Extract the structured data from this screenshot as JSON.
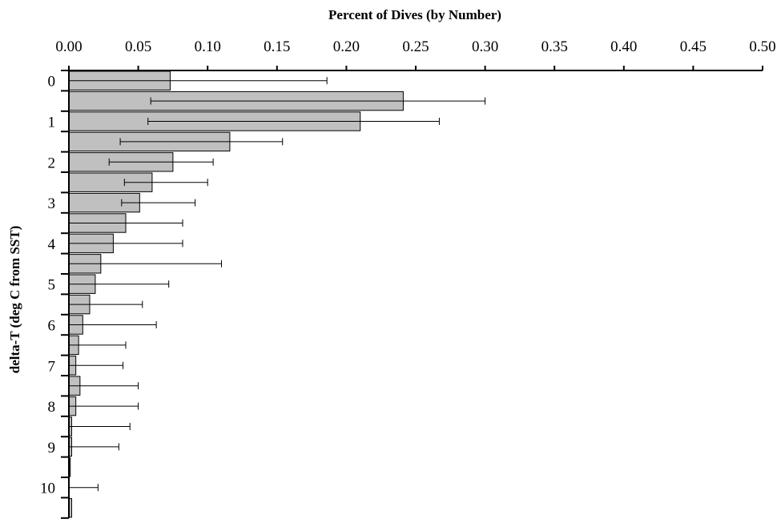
{
  "chart_data": {
    "type": "bar",
    "orientation": "horizontal",
    "title": "Percent of Dives (by Number)",
    "xlabel": "",
    "ylabel": "delta-T  (deg C from SST)",
    "xlim": [
      0,
      0.5
    ],
    "xticks": [
      "0.00",
      "0.05",
      "0.10",
      "0.15",
      "0.20",
      "0.25",
      "0.30",
      "0.35",
      "0.40",
      "0.45",
      "0.50"
    ],
    "yticks": [
      "0",
      "1",
      "2",
      "3",
      "4",
      "5",
      "6",
      "7",
      "8",
      "9",
      "10"
    ],
    "grid": false,
    "legend": "none",
    "bar_color": "#c0c0c0",
    "categories": [
      0,
      0.5,
      1,
      1.5,
      2,
      2.5,
      3,
      3.5,
      4,
      4.5,
      5,
      5.5,
      6,
      6.5,
      7,
      7.5,
      8,
      8.5,
      9,
      9.5,
      10,
      10.5
    ],
    "values": [
      0.073,
      0.241,
      0.21,
      0.116,
      0.075,
      0.06,
      0.051,
      0.041,
      0.032,
      0.023,
      0.019,
      0.015,
      0.01,
      0.007,
      0.005,
      0.008,
      0.005,
      0.002,
      0.002,
      0.001,
      0.0,
      0.002
    ],
    "error_high": [
      0.186,
      0.3,
      0.267,
      0.154,
      0.104,
      0.1,
      0.091,
      0.082,
      0.082,
      0.11,
      0.072,
      0.053,
      0.063,
      0.041,
      0.039,
      0.05,
      0.05,
      0.044,
      0.036,
      0.001,
      0.021,
      0.002
    ],
    "error_low": [
      0.073,
      0.182,
      0.153,
      0.079,
      0.046,
      0.02,
      0.013,
      0.041,
      0.032,
      0.023,
      0.019,
      0.015,
      0.01,
      0.007,
      0.005,
      0.008,
      0.005,
      0.002,
      0.002,
      0.001,
      0.0,
      0.002
    ]
  }
}
